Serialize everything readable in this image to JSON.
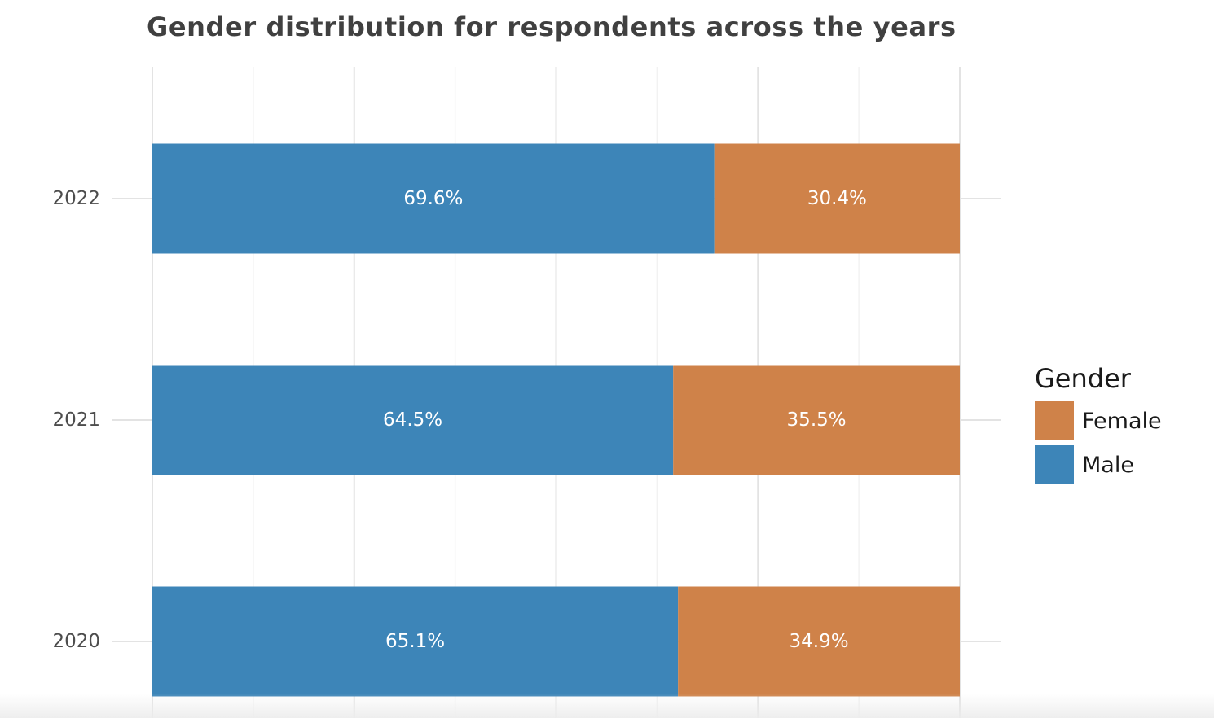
{
  "chart_data": {
    "type": "bar",
    "orientation": "horizontal",
    "stacked": true,
    "title": "Gender distribution for respondents across the years",
    "categories": [
      "2022",
      "2021",
      "2020"
    ],
    "series": [
      {
        "name": "Male",
        "values": [
          69.6,
          64.5,
          65.1
        ],
        "labels": [
          "69.6%",
          "64.5%",
          "65.1%"
        ],
        "color": "#3d85b8"
      },
      {
        "name": "Female",
        "values": [
          30.4,
          35.5,
          34.9
        ],
        "labels": [
          "30.4%",
          "35.5%",
          "34.9%"
        ],
        "color": "#cf8249"
      }
    ],
    "xlim": [
      0,
      100
    ],
    "xlabel": "",
    "ylabel": "",
    "grid": true,
    "legend": {
      "title": "Gender",
      "position": "right",
      "entries": [
        {
          "name": "Female",
          "color": "#cf8249"
        },
        {
          "name": "Male",
          "color": "#3d85b8"
        }
      ]
    }
  }
}
